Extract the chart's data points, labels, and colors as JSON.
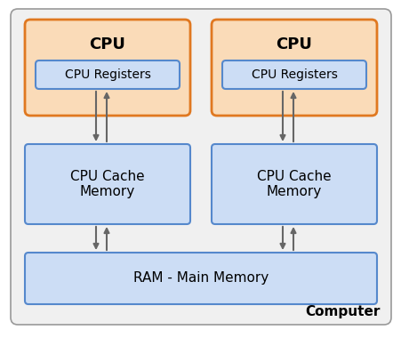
{
  "fig_bg": "#ffffff",
  "outer_fill": "#f0f0f0",
  "outer_edge": "#999999",
  "cpu_fill": "#fadbb8",
  "cpu_edge": "#e07820",
  "reg_fill": "#ccddf5",
  "reg_edge": "#5588cc",
  "cache_fill": "#ccddf5",
  "cache_edge": "#5588cc",
  "ram_fill": "#ccddf5",
  "ram_edge": "#5588cc",
  "arrow_color": "#666666",
  "text_color": "#000000",
  "computer_label": "Computer",
  "cpu_label": "CPU",
  "reg_label": "CPU Registers",
  "cache_label": "CPU Cache\nMemory",
  "ram_label": "RAM - Main Memory",
  "cpu_fontsize": 13,
  "reg_fontsize": 10,
  "cache_fontsize": 11,
  "ram_fontsize": 11,
  "computer_fontsize": 11
}
